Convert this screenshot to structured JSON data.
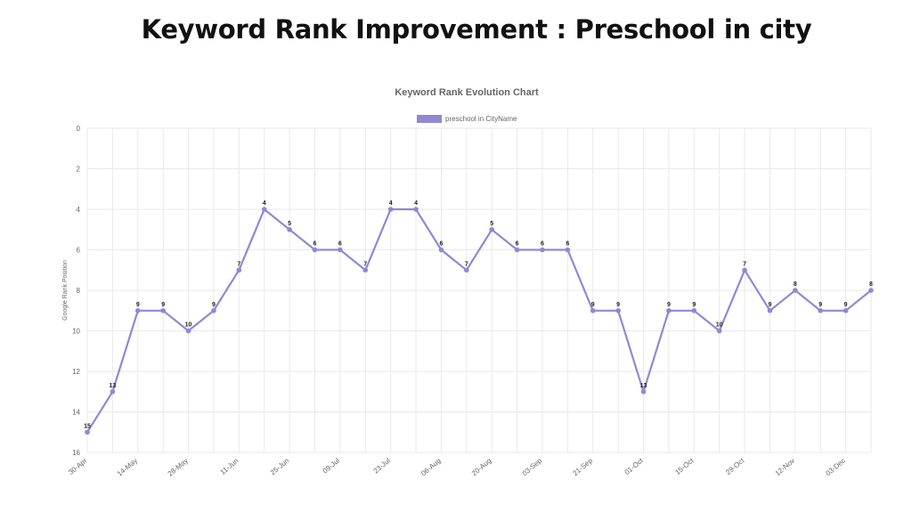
{
  "page": {
    "title": "Keyword Rank Improvement : Preschool in city"
  },
  "chart_data": {
    "type": "line",
    "title": "Keyword Rank Evolution Chart",
    "ylabel": "Google Rank Position",
    "xlabel": "",
    "ylim": [
      0,
      16
    ],
    "y_reversed": true,
    "y_ticks": [
      0,
      2,
      4,
      6,
      8,
      10,
      12,
      14,
      16
    ],
    "grid": true,
    "legend_position": "top-center",
    "x_tick_labels": [
      "30-Apr",
      "14-May",
      "28-May",
      "11-Jun",
      "25-Jun",
      "09-Jul",
      "23-Jul",
      "06-Aug",
      "20-Aug",
      "03-Sep",
      "21-Sep",
      "01-Oct",
      "15-Oct",
      "29-Oct",
      "12-Nov",
      "03-Dec"
    ],
    "series": [
      {
        "name": "preschool in CityName",
        "color": "#9088d4",
        "values": [
          15,
          13,
          9,
          9,
          10,
          9,
          7,
          4,
          5,
          6,
          6,
          7,
          4,
          4,
          6,
          7,
          5,
          6,
          6,
          6,
          9,
          9,
          13,
          9,
          9,
          10,
          7,
          9,
          8,
          9,
          9,
          8
        ]
      }
    ]
  }
}
